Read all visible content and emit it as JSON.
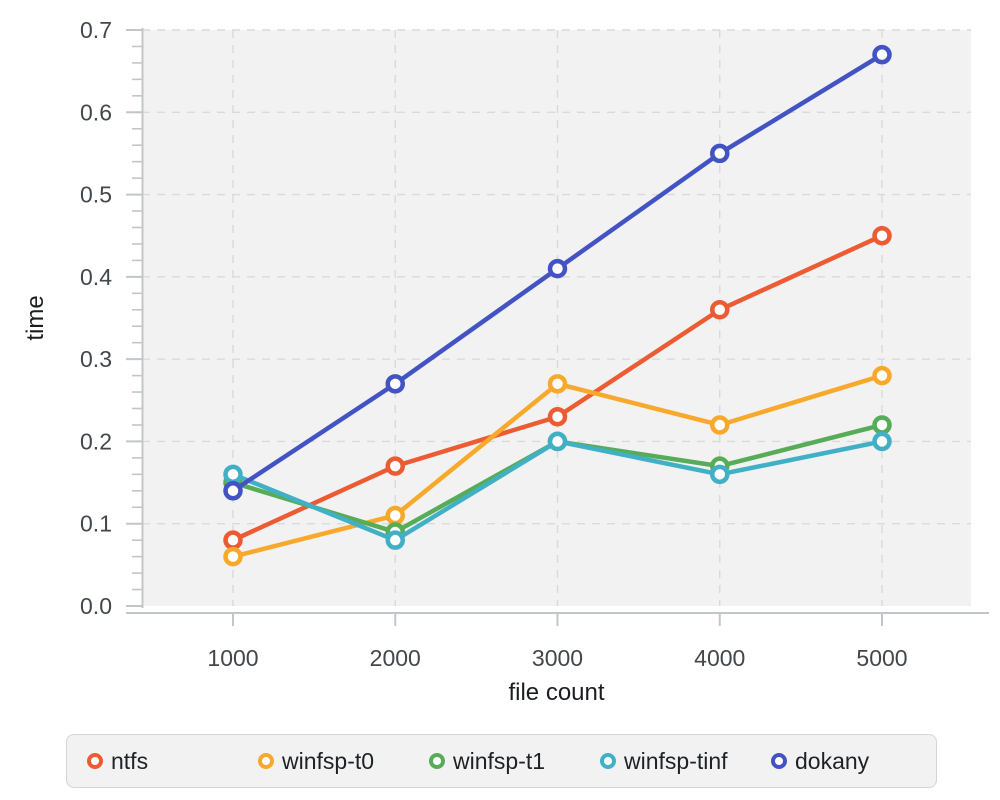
{
  "chart_data": {
    "type": "line",
    "title": "",
    "xlabel": "file count",
    "ylabel": "time",
    "x": [
      1000,
      2000,
      3000,
      4000,
      5000
    ],
    "x_tick_labels": [
      "1000",
      "2000",
      "3000",
      "4000",
      "5000"
    ],
    "series": [
      {
        "name": "ntfs",
        "color": "#ed5b33",
        "values": [
          0.08,
          0.17,
          0.23,
          0.36,
          0.45
        ]
      },
      {
        "name": "winfsp-t0",
        "color": "#f8a82a",
        "values": [
          0.06,
          0.11,
          0.27,
          0.22,
          0.28
        ]
      },
      {
        "name": "winfsp-t1",
        "color": "#57ac57",
        "values": [
          0.15,
          0.09,
          0.2,
          0.17,
          0.22
        ]
      },
      {
        "name": "winfsp-tinf",
        "color": "#41b0c6",
        "values": [
          0.16,
          0.08,
          0.2,
          0.16,
          0.2
        ]
      },
      {
        "name": "dokany",
        "color": "#4353c3",
        "values": [
          0.14,
          0.27,
          0.41,
          0.55,
          0.67
        ]
      }
    ],
    "ylim": [
      0,
      0.7
    ],
    "y_major_step": 0.1,
    "y_minor_step": 0.02,
    "y_tick_labels": [
      "0.0",
      "0.1",
      "0.2",
      "0.3",
      "0.4",
      "0.5",
      "0.6",
      "0.7"
    ],
    "grid": "dashed",
    "legend_position": "bottom",
    "marker": "open-circle",
    "colors": {
      "plot_background": "#f2f2f3",
      "gridline": "#d8dadb",
      "axis_line": "#c3c6c9",
      "tick_label": "#43474c",
      "axis_title": "#1a1d21",
      "legend_text": "#1e2226"
    }
  }
}
